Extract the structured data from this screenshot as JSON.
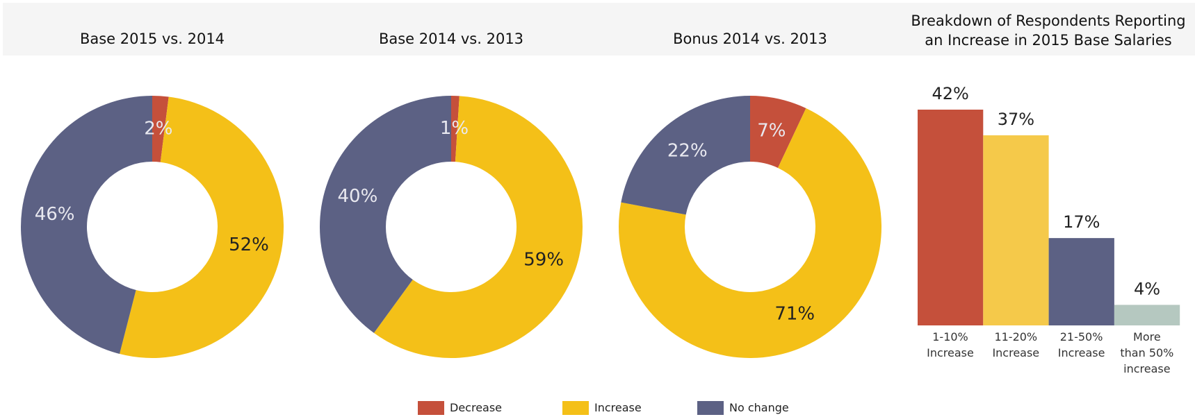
{
  "chart_data": [
    {
      "type": "donut",
      "title": "Base 2015 vs. 2014",
      "categories": [
        "Decrease",
        "Increase",
        "No change"
      ],
      "values": [
        2,
        52,
        46
      ],
      "value_labels": [
        "2%",
        "52%",
        "46%"
      ],
      "colors": [
        "#c5503b",
        "#f4c018",
        "#5c6184"
      ]
    },
    {
      "type": "donut",
      "title": "Base 2014 vs. 2013",
      "categories": [
        "Decrease",
        "Increase",
        "No change"
      ],
      "values": [
        1,
        59,
        40
      ],
      "value_labels": [
        "1%",
        "59%",
        "40%"
      ],
      "colors": [
        "#c5503b",
        "#f4c018",
        "#5c6184"
      ]
    },
    {
      "type": "donut",
      "title": "Bonus 2014 vs. 2013",
      "categories": [
        "Decrease",
        "Increase",
        "No change"
      ],
      "values": [
        7,
        71,
        22
      ],
      "value_labels": [
        "7%",
        "71%",
        "22%"
      ],
      "colors": [
        "#c5503b",
        "#f4c018",
        "#5c6184"
      ]
    },
    {
      "type": "bar",
      "title": "Breakdown of Respondents Reporting\nan Increase in 2015 Base Salaries",
      "categories": [
        "1-10%\nIncrease",
        "11-20%\nIncrease",
        "21-50%\nIncrease",
        "More\nthan 50%\nincrease"
      ],
      "values": [
        42,
        37,
        17,
        4
      ],
      "value_labels": [
        "42%",
        "37%",
        "17%",
        "4%"
      ],
      "colors": [
        "#c5503b",
        "#f5c94a",
        "#5c6184",
        "#b5c8c0"
      ]
    }
  ]
}
